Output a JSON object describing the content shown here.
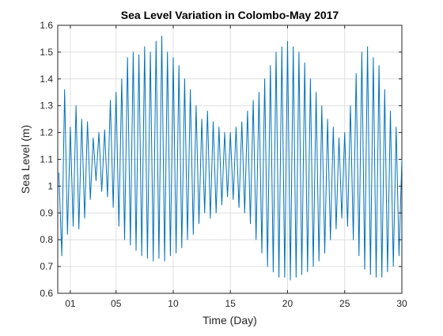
{
  "chart_data": {
    "type": "line",
    "title": "Sea Level Variation in Colombo-May 2017",
    "xlabel": "Time (Day)",
    "ylabel": "Sea Level (m)",
    "xlim": [
      -0.1,
      30
    ],
    "ylim": [
      0.6,
      1.6
    ],
    "x_ticks": [
      1,
      5,
      10,
      15,
      20,
      25,
      30
    ],
    "x_tick_labels": [
      "01",
      "05",
      "10",
      "15",
      "20",
      "25",
      "30"
    ],
    "y_ticks": [
      0.6,
      0.7,
      0.8,
      0.9,
      1.0,
      1.1,
      1.2,
      1.3,
      1.4,
      1.5,
      1.6
    ],
    "y_tick_labels": [
      "0.6",
      "0.7",
      "0.8",
      "0.9",
      "1",
      "1.1",
      "1.2",
      "1.3",
      "1.4",
      "1.5",
      "1.6"
    ],
    "grid": true,
    "color": "#0072bd",
    "series": [
      {
        "x": [
          0.0,
          0.25,
          0.5,
          0.75,
          1.0,
          1.25,
          1.5,
          1.75,
          2.0,
          2.25,
          2.5,
          2.75,
          3.0,
          3.25,
          3.5,
          3.75,
          4.0,
          4.25,
          4.5,
          4.75,
          5.0,
          5.25,
          5.5,
          5.75,
          6.0,
          6.25,
          6.5,
          6.75,
          7.0,
          7.25,
          7.5,
          7.75,
          8.0,
          8.25,
          8.5,
          8.75,
          9.0,
          9.25,
          9.5,
          9.75,
          10.0,
          10.25,
          10.5,
          10.75,
          11.0,
          11.25,
          11.5,
          11.75,
          12.0,
          12.25,
          12.5,
          12.75,
          13.0,
          13.25,
          13.5,
          13.75,
          14.0,
          14.25,
          14.5,
          14.75,
          15.0,
          15.25,
          15.5,
          15.75,
          16.0,
          16.25,
          16.5,
          16.75,
          17.0,
          17.25,
          17.5,
          17.75,
          18.0,
          18.25,
          18.5,
          18.75,
          19.0,
          19.25,
          19.5,
          19.75,
          20.0,
          20.25,
          20.5,
          20.75,
          21.0,
          21.25,
          21.5,
          21.75,
          22.0,
          22.25,
          22.5,
          22.75,
          23.0,
          23.25,
          23.5,
          23.75,
          24.0,
          24.25,
          24.5,
          24.75,
          25.0,
          25.25,
          25.5,
          25.75,
          26.0,
          26.25,
          26.5,
          26.75,
          27.0,
          27.25,
          27.5,
          27.75,
          28.0,
          28.25,
          28.5,
          28.75,
          29.0,
          29.25,
          29.5,
          29.75,
          30.0
        ],
        "y": [
          1.05,
          0.74,
          1.36,
          0.82,
          1.22,
          0.85,
          1.3,
          0.84,
          1.25,
          0.88,
          1.24,
          0.95,
          1.18,
          1.02,
          1.2,
          0.98,
          1.21,
          0.96,
          1.32,
          0.92,
          1.35,
          0.85,
          1.4,
          0.8,
          1.48,
          0.78,
          1.5,
          0.76,
          1.49,
          0.74,
          1.52,
          0.73,
          1.5,
          0.72,
          1.54,
          0.73,
          1.56,
          0.72,
          1.5,
          0.74,
          1.48,
          0.75,
          1.45,
          0.77,
          1.4,
          0.8,
          1.36,
          0.82,
          1.3,
          0.86,
          1.25,
          0.9,
          1.28,
          0.88,
          1.24,
          0.9,
          1.22,
          0.93,
          1.2,
          0.96,
          1.2,
          0.95,
          1.22,
          0.92,
          1.24,
          0.9,
          1.28,
          0.86,
          1.32,
          0.8,
          1.35,
          0.75,
          1.4,
          0.7,
          1.45,
          0.68,
          1.5,
          0.66,
          1.52,
          0.66,
          1.54,
          0.65,
          1.52,
          0.66,
          1.5,
          0.67,
          1.46,
          0.68,
          1.4,
          0.7,
          1.35,
          0.72,
          1.3,
          0.75,
          1.25,
          0.8,
          1.22,
          0.84,
          1.18,
          0.88,
          1.2,
          0.85,
          1.3,
          0.8,
          1.42,
          0.74,
          1.5,
          0.69,
          1.52,
          0.67,
          1.48,
          0.66,
          1.45,
          0.66,
          1.36,
          0.68,
          1.28,
          0.7,
          1.22,
          0.74,
          1.1
        ]
      }
    ]
  }
}
